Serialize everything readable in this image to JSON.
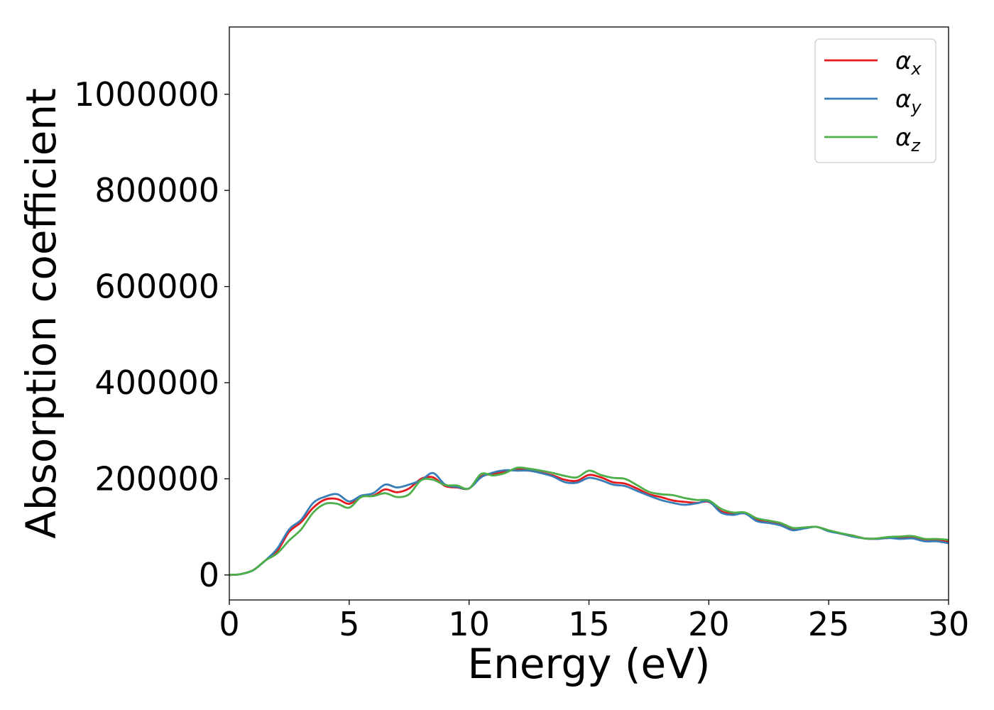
{
  "chart_data": {
    "type": "line",
    "title": "",
    "xlabel": "Energy (eV)",
    "ylabel": "Absorption coefficient",
    "xlim": [
      0,
      30
    ],
    "ylim": [
      -52000,
      1140000
    ],
    "xticks": [
      0,
      5,
      10,
      15,
      20,
      25,
      30
    ],
    "yticks": [
      0,
      200000,
      400000,
      600000,
      800000,
      1000000
    ],
    "xtick_labels": [
      "0",
      "5",
      "10",
      "15",
      "20",
      "25",
      "30"
    ],
    "ytick_labels": [
      "0",
      "200000",
      "400000",
      "600000",
      "800000",
      "1000000"
    ],
    "grid": false,
    "legend_position": "top-right",
    "x": [
      0,
      0.5,
      1,
      1.5,
      2,
      2.5,
      3,
      3.5,
      4,
      4.5,
      5,
      5.5,
      6,
      6.5,
      7,
      7.5,
      8,
      8.5,
      9,
      9.5,
      10,
      10.5,
      11,
      11.5,
      12,
      12.5,
      13,
      13.5,
      14,
      14.5,
      15,
      15.5,
      16,
      16.5,
      17,
      17.5,
      18,
      18.5,
      19,
      19.5,
      20,
      20.5,
      21,
      21.5,
      22,
      22.5,
      23,
      23.5,
      24,
      24.5,
      25,
      25.5,
      26,
      26.5,
      27,
      27.5,
      28,
      28.5,
      29,
      29.5,
      30
    ],
    "series": [
      {
        "name": "α",
        "subscript": "x",
        "color": "#e41a1c",
        "values": [
          0,
          2000,
          10000,
          30000,
          50000,
          90000,
          110000,
          140000,
          157000,
          158000,
          148000,
          163000,
          165000,
          178000,
          172000,
          180000,
          200000,
          203000,
          185000,
          182000,
          180000,
          205000,
          210000,
          215000,
          220000,
          217000,
          213000,
          207000,
          198000,
          196000,
          208000,
          203000,
          193000,
          190000,
          180000,
          168000,
          162000,
          155000,
          152000,
          150000,
          152000,
          133000,
          127000,
          128000,
          115000,
          112000,
          105000,
          96000,
          98000,
          100000,
          92000,
          86000,
          82000,
          76000,
          75000,
          77000,
          78000,
          78000,
          72000,
          72000,
          70000
        ]
      },
      {
        "name": "α",
        "subscript": "y",
        "color": "#377eb8",
        "values": [
          0,
          2000,
          10000,
          30000,
          55000,
          95000,
          115000,
          150000,
          163000,
          168000,
          153000,
          165000,
          170000,
          188000,
          182000,
          188000,
          197000,
          212000,
          188000,
          183000,
          180000,
          203000,
          213000,
          218000,
          217000,
          217000,
          212000,
          205000,
          193000,
          192000,
          202000,
          197000,
          188000,
          185000,
          175000,
          165000,
          156000,
          150000,
          146000,
          149000,
          153000,
          130000,
          125000,
          128000,
          112000,
          108000,
          103000,
          93000,
          97000,
          100000,
          91000,
          86000,
          80000,
          76000,
          75000,
          77000,
          75000,
          76000,
          70000,
          70000,
          66000
        ]
      },
      {
        "name": "α",
        "subscript": "z",
        "color": "#4daf4a",
        "values": [
          0,
          2000,
          10000,
          30000,
          45000,
          72000,
          95000,
          130000,
          148000,
          148000,
          140000,
          162000,
          164000,
          170000,
          162000,
          168000,
          197000,
          198000,
          187000,
          186000,
          180000,
          210000,
          207000,
          212000,
          223000,
          221000,
          217000,
          212000,
          206000,
          203000,
          217000,
          208000,
          202000,
          200000,
          187000,
          173000,
          168000,
          166000,
          160000,
          156000,
          155000,
          138000,
          130000,
          130000,
          118000,
          113000,
          108000,
          98000,
          99000,
          100000,
          93000,
          87000,
          82000,
          76000,
          76000,
          79000,
          80000,
          81000,
          75000,
          75000,
          73000
        ]
      }
    ]
  }
}
